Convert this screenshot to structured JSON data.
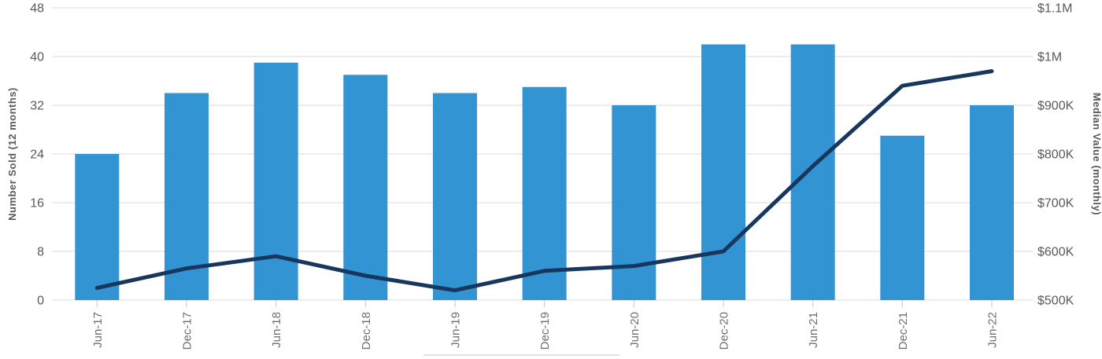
{
  "chart_data": {
    "type": "bar",
    "subtype": "combo-bar-line-dual-axis",
    "categories": [
      "Jun-17",
      "Dec-17",
      "Jun-18",
      "Dec-18",
      "Jun-19",
      "Dec-19",
      "Jun-20",
      "Dec-20",
      "Jun-21",
      "Dec-21",
      "Jun-22"
    ],
    "series": [
      {
        "name": "Number Sold",
        "type": "bar",
        "axis": "left",
        "color": "#3394d3",
        "values": [
          24,
          34,
          39,
          37,
          34,
          35,
          32,
          42,
          42,
          27,
          32
        ]
      },
      {
        "name": "Median Value",
        "type": "line",
        "axis": "right",
        "color": "#17375e",
        "values": [
          525000,
          565000,
          590000,
          550000,
          520000,
          560000,
          570000,
          600000,
          775000,
          940000,
          970000
        ]
      }
    ],
    "left_axis": {
      "title": "Number Sold (12 months)",
      "tick_values": [
        48,
        40,
        32,
        24,
        16,
        8,
        0
      ],
      "min": 0,
      "max": 48
    },
    "right_axis": {
      "title": "Median Value (monthly)",
      "tick_labels": [
        "$1.1M",
        "$1M",
        "$900K",
        "$800K",
        "$700K",
        "$600K",
        "$500K"
      ],
      "min": 500000,
      "max": 1100000
    },
    "grid": true,
    "legend_position": "bottom-cut-off",
    "title": "",
    "colors": {
      "bar": "#3394d3",
      "line": "#17375e",
      "gridline": "#d9d9d9",
      "tick_mark": "#c6c6c6",
      "label_text": "#595959",
      "background": "#ffffff"
    }
  }
}
